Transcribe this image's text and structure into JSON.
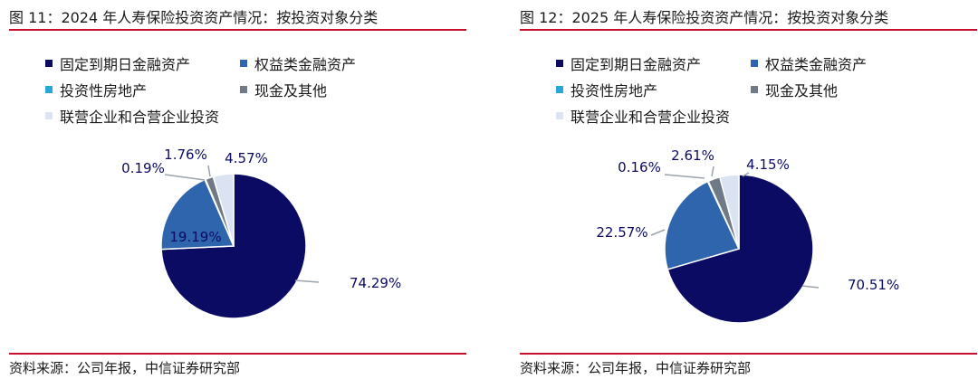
{
  "chart_data": [
    {
      "type": "pie",
      "title": "图 11：2024 年人寿保险投资资产情况：按投资对象分类",
      "source": "资料来源：公司年报，中信证券研究部",
      "categories": [
        "固定到期日金融资产",
        "权益类金融资产",
        "投资性房地产",
        "现金及其他",
        "联营企业和合营企业投资"
      ],
      "values": [
        74.29,
        19.19,
        0.19,
        1.76,
        4.57
      ],
      "labels": [
        "74.29%",
        "19.19%",
        "0.19%",
        "1.76%",
        "4.57%"
      ],
      "colors": [
        "#0b0b63",
        "#2f65ad",
        "#29a8d8",
        "#6f7a86",
        "#dbe3f2"
      ],
      "legend_placement": "top"
    },
    {
      "type": "pie",
      "title": "图 12：2025 年人寿保险投资资产情况：按投资对象分类",
      "source": "资料来源：公司年报，中信证券研究部",
      "categories": [
        "固定到期日金融资产",
        "权益类金融资产",
        "投资性房地产",
        "现金及其他",
        "联营企业和合营企业投资"
      ],
      "values": [
        70.51,
        22.57,
        0.16,
        2.61,
        4.15
      ],
      "labels": [
        "70.51%",
        "22.57%",
        "0.16%",
        "2.61%",
        "4.15%"
      ],
      "colors": [
        "#0b0b63",
        "#2f65ad",
        "#29a8d8",
        "#6f7a86",
        "#dbe3f2"
      ],
      "legend_placement": "top"
    }
  ]
}
